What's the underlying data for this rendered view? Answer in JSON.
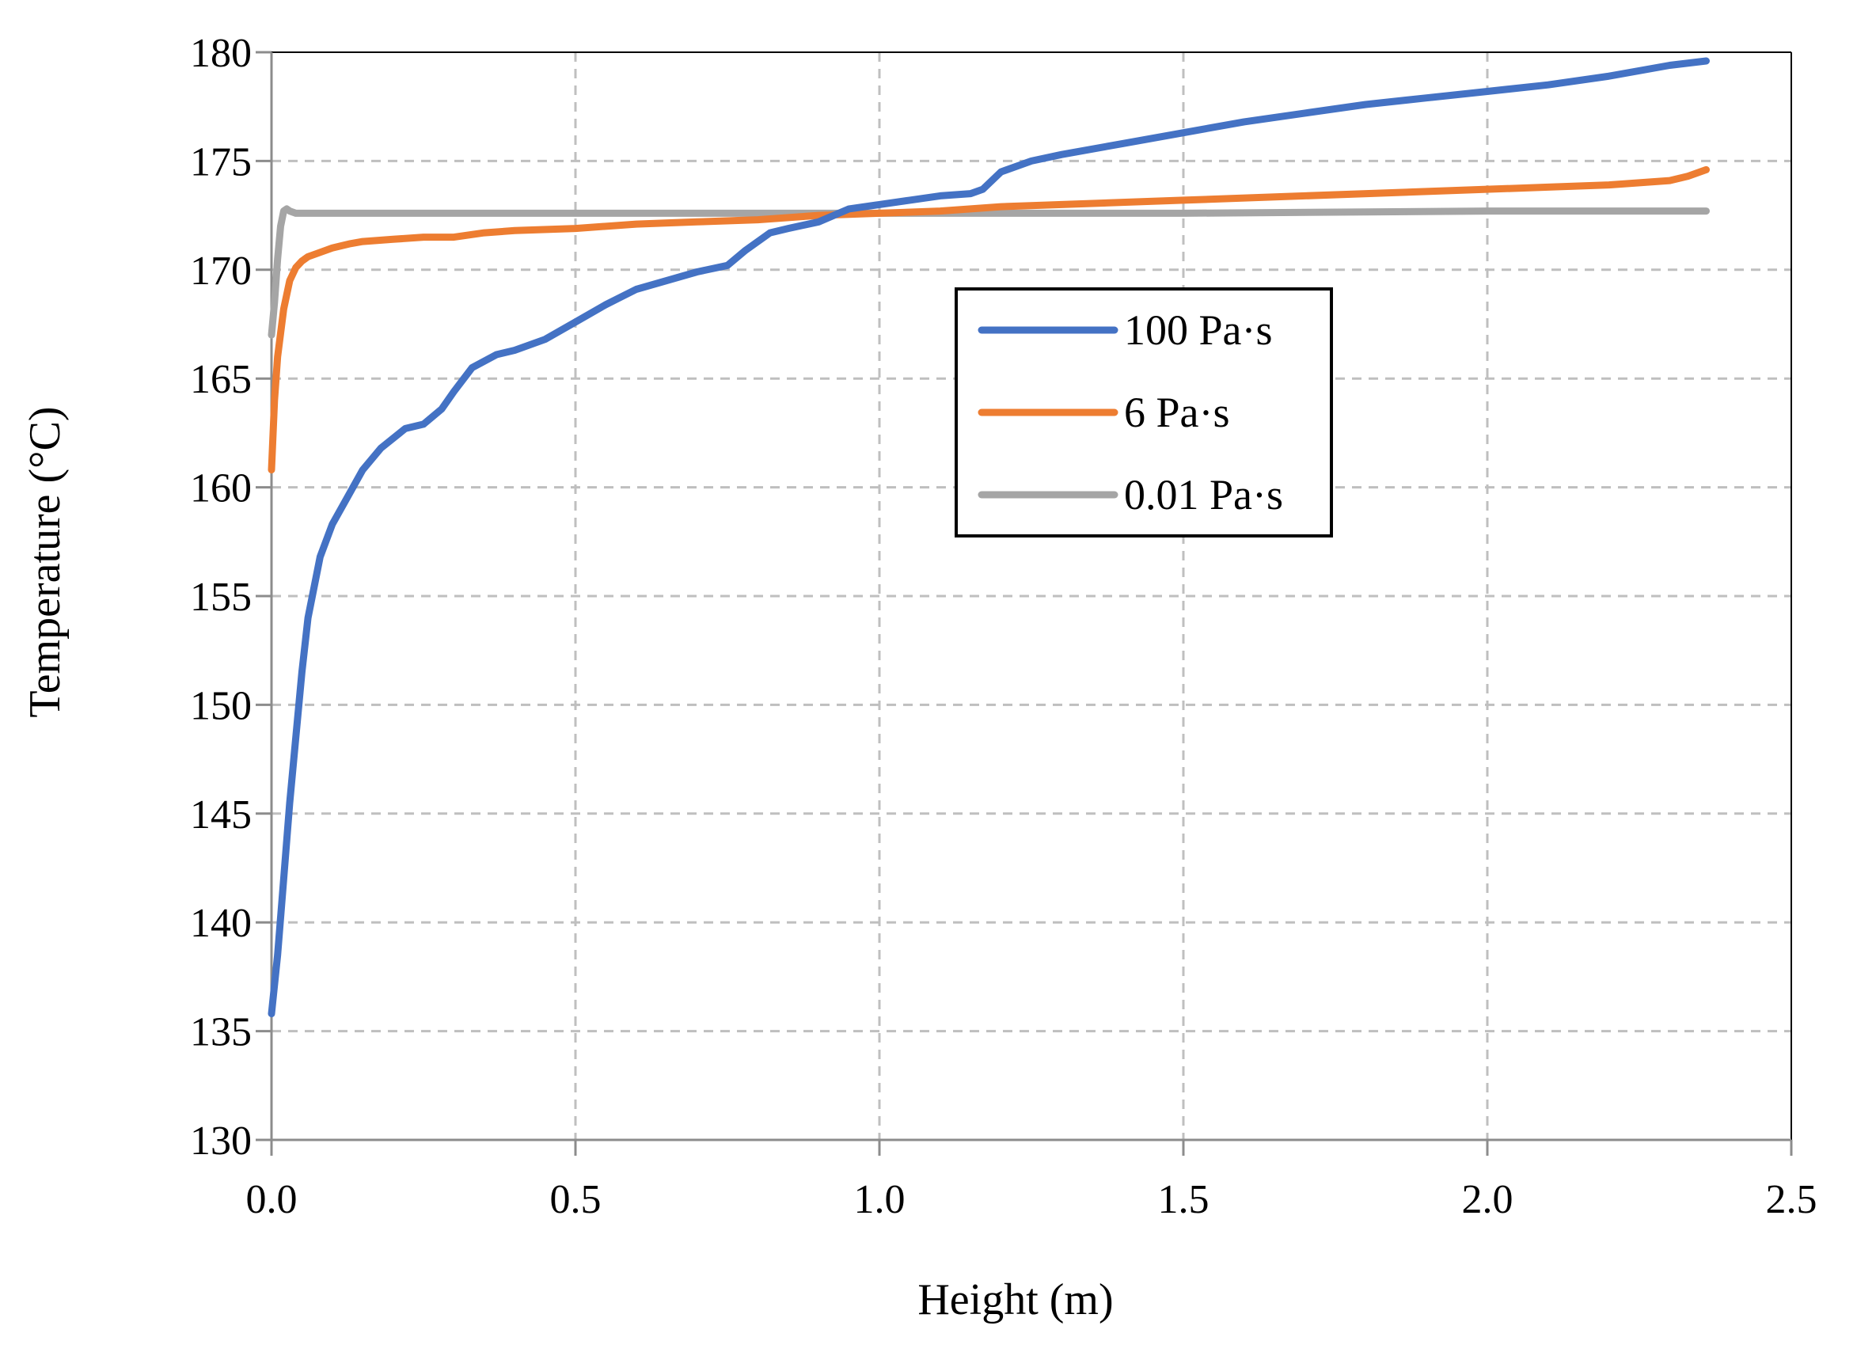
{
  "chart_data": {
    "type": "line",
    "title": "",
    "xlabel": "Height (m)",
    "ylabel": "Temperature (°C)",
    "xlim": [
      0,
      2.5
    ],
    "ylim": [
      130,
      180
    ],
    "x_ticks": [
      "0.0",
      "0.5",
      "1.0",
      "1.5",
      "2.0",
      "2.5"
    ],
    "y_ticks": [
      "130",
      "135",
      "140",
      "145",
      "150",
      "155",
      "160",
      "165",
      "170",
      "175",
      "180"
    ],
    "grid": true,
    "legend_position": "center-right",
    "series": [
      {
        "name": "100 Pa·s",
        "color": "#4472C4",
        "x": [
          0,
          0.01,
          0.02,
          0.03,
          0.04,
          0.05,
          0.06,
          0.08,
          0.1,
          0.12,
          0.15,
          0.18,
          0.22,
          0.25,
          0.28,
          0.3,
          0.33,
          0.37,
          0.4,
          0.45,
          0.5,
          0.55,
          0.6,
          0.65,
          0.7,
          0.75,
          0.78,
          0.82,
          0.85,
          0.9,
          0.95,
          1.0,
          1.05,
          1.1,
          1.15,
          1.17,
          1.2,
          1.25,
          1.3,
          1.4,
          1.5,
          1.6,
          1.7,
          1.8,
          1.9,
          2.0,
          2.1,
          2.2,
          2.3,
          2.36
        ],
        "values": [
          135.8,
          138.5,
          142.0,
          145.5,
          148.5,
          151.5,
          154.0,
          156.8,
          158.3,
          159.3,
          160.8,
          161.8,
          162.7,
          162.9,
          163.6,
          164.4,
          165.5,
          166.1,
          166.3,
          166.8,
          167.6,
          168.4,
          169.1,
          169.5,
          169.9,
          170.2,
          170.9,
          171.7,
          171.9,
          172.2,
          172.8,
          173.0,
          173.2,
          173.4,
          173.5,
          173.7,
          174.5,
          175.0,
          175.3,
          175.8,
          176.3,
          176.8,
          177.2,
          177.6,
          177.9,
          178.2,
          178.5,
          178.9,
          179.4,
          179.6
        ]
      },
      {
        "name": "6 Pa·s",
        "color": "#ED7D31",
        "x": [
          0,
          0.005,
          0.01,
          0.02,
          0.03,
          0.04,
          0.05,
          0.06,
          0.08,
          0.1,
          0.13,
          0.15,
          0.2,
          0.25,
          0.3,
          0.35,
          0.4,
          0.5,
          0.6,
          0.7,
          0.8,
          0.9,
          1.0,
          1.1,
          1.2,
          1.3,
          1.5,
          1.7,
          1.9,
          2.1,
          2.2,
          2.3,
          2.33,
          2.36
        ],
        "values": [
          160.8,
          164.0,
          166.0,
          168.2,
          169.5,
          170.1,
          170.4,
          170.6,
          170.8,
          171.0,
          171.2,
          171.3,
          171.4,
          171.5,
          171.5,
          171.7,
          171.8,
          171.9,
          172.1,
          172.2,
          172.3,
          172.5,
          172.6,
          172.7,
          172.9,
          173.0,
          173.2,
          173.4,
          173.6,
          173.8,
          173.9,
          174.1,
          174.3,
          174.6
        ]
      },
      {
        "name": "0.01 Pa·s",
        "color": "#A5A5A5",
        "x": [
          0,
          0.005,
          0.01,
          0.015,
          0.02,
          0.025,
          0.03,
          0.04,
          0.05,
          0.1,
          0.5,
          1.0,
          1.5,
          2.0,
          2.36
        ],
        "values": [
          167.0,
          168.5,
          170.5,
          172.0,
          172.7,
          172.8,
          172.7,
          172.6,
          172.6,
          172.6,
          172.6,
          172.6,
          172.6,
          172.7,
          172.7
        ]
      }
    ]
  }
}
